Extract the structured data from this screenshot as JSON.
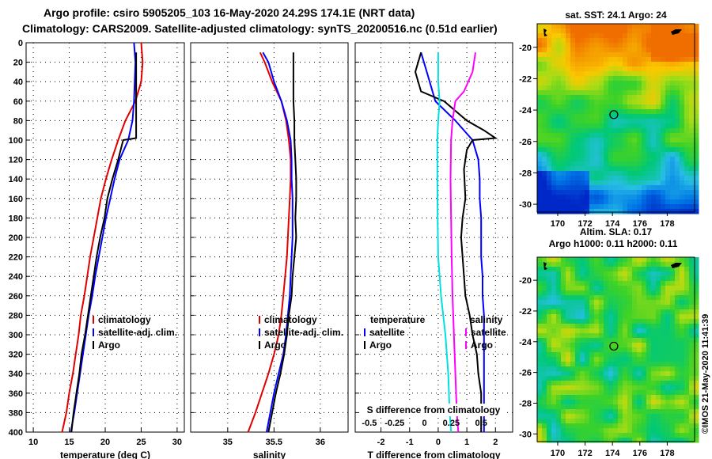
{
  "title_line1": "Argo profile: csiro 5905205_103 16-May-2020 24.29S 174.1E (NRT data)",
  "title_line2": "Climatology: CARS2009. Satellite-adjusted climatology: synTS_20200516.nc (0.51d earlier)",
  "timestamp": "©IMOS 21-May-2020 11:41:39",
  "colors": {
    "climatology": "#e00000",
    "satellite": "#0000ff",
    "argo": "#000000",
    "s_diff": "#00e0e0",
    "s_sat": "#ff00ff"
  },
  "chart_data": [
    {
      "type": "line",
      "name": "temperature-profile",
      "xlabel": "temperature (deg C)",
      "ylabel": "",
      "xlim": [
        9,
        31
      ],
      "ylim": [
        400,
        0
      ],
      "xticks": [
        "10",
        "15",
        "20",
        "25",
        "30"
      ],
      "yticks": [
        "0",
        "20",
        "40",
        "60",
        "80",
        "100",
        "120",
        "140",
        "160",
        "180",
        "200",
        "220",
        "240",
        "260",
        "280",
        "300",
        "320",
        "340",
        "360",
        "380",
        "400"
      ],
      "legend": [
        "climatology",
        "satellite-adj. clim.",
        "Argo"
      ],
      "series": [
        {
          "name": "climatology",
          "color_key": "climatology",
          "points": [
            [
              25.0,
              0
            ],
            [
              25.2,
              20
            ],
            [
              25.0,
              40
            ],
            [
              24.2,
              60
            ],
            [
              22.8,
              80
            ],
            [
              21.8,
              100
            ],
            [
              20.9,
              120
            ],
            [
              20.1,
              140
            ],
            [
              19.4,
              160
            ],
            [
              18.9,
              180
            ],
            [
              18.4,
              200
            ],
            [
              17.9,
              220
            ],
            [
              17.5,
              240
            ],
            [
              17.1,
              260
            ],
            [
              16.6,
              280
            ],
            [
              16.3,
              300
            ],
            [
              15.9,
              320
            ],
            [
              15.5,
              340
            ],
            [
              15.0,
              360
            ],
            [
              14.6,
              380
            ],
            [
              14.0,
              400
            ]
          ]
        },
        {
          "name": "satellite-adj. clim.",
          "color_key": "satellite",
          "points": [
            [
              24.0,
              0
            ],
            [
              24.2,
              20
            ],
            [
              24.1,
              40
            ],
            [
              24.0,
              60
            ],
            [
              23.8,
              80
            ],
            [
              23.2,
              100
            ],
            [
              22.0,
              120
            ],
            [
              21.3,
              140
            ],
            [
              20.7,
              160
            ],
            [
              20.1,
              180
            ],
            [
              19.6,
              200
            ],
            [
              19.1,
              220
            ],
            [
              18.6,
              240
            ],
            [
              18.2,
              260
            ],
            [
              17.7,
              280
            ],
            [
              17.3,
              300
            ],
            [
              16.9,
              320
            ],
            [
              16.5,
              340
            ],
            [
              16.1,
              360
            ],
            [
              15.7,
              380
            ],
            [
              15.2,
              400
            ]
          ]
        },
        {
          "name": "Argo",
          "color_key": "argo",
          "points": [
            [
              24.3,
              10
            ],
            [
              24.3,
              40
            ],
            [
              24.3,
              60
            ],
            [
              24.3,
              80
            ],
            [
              24.3,
              98
            ],
            [
              22.5,
              100
            ],
            [
              21.8,
              120
            ],
            [
              21.0,
              140
            ],
            [
              20.3,
              160
            ],
            [
              19.9,
              180
            ],
            [
              19.3,
              200
            ],
            [
              18.8,
              220
            ],
            [
              18.4,
              240
            ],
            [
              18.0,
              260
            ],
            [
              17.6,
              280
            ],
            [
              17.2,
              300
            ],
            [
              16.7,
              320
            ],
            [
              16.4,
              340
            ],
            [
              16.0,
              360
            ],
            [
              15.6,
              380
            ],
            [
              15.3,
              400
            ]
          ]
        }
      ]
    },
    {
      "type": "line",
      "name": "salinity-profile",
      "xlabel": "salinity",
      "xlim": [
        34.6,
        36.3
      ],
      "ylim": [
        400,
        0
      ],
      "xticks": [
        "35",
        "35.5",
        "36"
      ],
      "legend": [
        "climatology",
        "satellite-adj. clim.",
        "Argo"
      ],
      "series": [
        {
          "name": "climatology",
          "color_key": "climatology",
          "points": [
            [
              35.35,
              10
            ],
            [
              35.4,
              20
            ],
            [
              35.48,
              40
            ],
            [
              35.58,
              60
            ],
            [
              35.63,
              80
            ],
            [
              35.66,
              100
            ],
            [
              35.68,
              120
            ],
            [
              35.68,
              140
            ],
            [
              35.67,
              160
            ],
            [
              35.66,
              180
            ],
            [
              35.65,
              200
            ],
            [
              35.64,
              220
            ],
            [
              35.62,
              240
            ],
            [
              35.6,
              260
            ],
            [
              35.58,
              280
            ],
            [
              35.55,
              300
            ],
            [
              35.5,
              320
            ],
            [
              35.44,
              340
            ],
            [
              35.37,
              360
            ],
            [
              35.3,
              380
            ],
            [
              35.22,
              400
            ]
          ]
        },
        {
          "name": "satellite-adj. clim.",
          "color_key": "satellite",
          "points": [
            [
              35.38,
              10
            ],
            [
              35.44,
              20
            ],
            [
              35.5,
              40
            ],
            [
              35.58,
              60
            ],
            [
              35.64,
              80
            ],
            [
              35.68,
              100
            ],
            [
              35.69,
              120
            ],
            [
              35.69,
              140
            ],
            [
              35.7,
              160
            ],
            [
              35.7,
              180
            ],
            [
              35.7,
              200
            ],
            [
              35.69,
              220
            ],
            [
              35.68,
              240
            ],
            [
              35.67,
              260
            ],
            [
              35.65,
              280
            ],
            [
              35.63,
              300
            ],
            [
              35.6,
              320
            ],
            [
              35.55,
              340
            ],
            [
              35.5,
              360
            ],
            [
              35.46,
              380
            ],
            [
              35.42,
              400
            ]
          ]
        },
        {
          "name": "Argo",
          "color_key": "argo",
          "points": [
            [
              35.71,
              10
            ],
            [
              35.71,
              50
            ],
            [
              35.71,
              60
            ],
            [
              35.72,
              80
            ],
            [
              35.72,
              100
            ],
            [
              35.73,
              120
            ],
            [
              35.74,
              140
            ],
            [
              35.74,
              160
            ],
            [
              35.73,
              180
            ],
            [
              35.74,
              200
            ],
            [
              35.72,
              220
            ],
            [
              35.7,
              240
            ],
            [
              35.69,
              260
            ],
            [
              35.66,
              280
            ],
            [
              35.64,
              300
            ],
            [
              35.61,
              320
            ],
            [
              35.57,
              340
            ],
            [
              35.52,
              360
            ],
            [
              35.48,
              380
            ],
            [
              35.44,
              400
            ]
          ]
        }
      ]
    },
    {
      "type": "line",
      "name": "difference-profile",
      "xlabel": "T difference from climatology",
      "xlabel2": "S difference from climatology",
      "xlim": [
        -2.9,
        2.6
      ],
      "ylim": [
        400,
        0
      ],
      "xticks": [
        "-2",
        "-1",
        "0",
        "1",
        "2"
      ],
      "xticks2": [
        "-0.5",
        "-0.25",
        "0",
        "0.25",
        "0.5"
      ],
      "legend_left": [
        "temperature",
        "satellite",
        "Argo"
      ],
      "legend_right": [
        "salinity",
        "satellite",
        "Argo"
      ],
      "series": [
        {
          "name": "T satellite",
          "color_key": "satellite",
          "points": [
            [
              -0.6,
              10
            ],
            [
              -0.4,
              30
            ],
            [
              -0.1,
              60
            ],
            [
              0.6,
              80
            ],
            [
              1.2,
              100
            ],
            [
              1.4,
              120
            ],
            [
              1.45,
              140
            ],
            [
              1.45,
              160
            ],
            [
              1.5,
              180
            ],
            [
              1.5,
              200
            ],
            [
              1.5,
              220
            ],
            [
              1.55,
              240
            ],
            [
              1.55,
              260
            ],
            [
              1.6,
              280
            ],
            [
              1.6,
              300
            ],
            [
              1.6,
              320
            ],
            [
              1.6,
              340
            ],
            [
              1.6,
              360
            ],
            [
              1.6,
              380
            ],
            [
              1.6,
              400
            ]
          ]
        },
        {
          "name": "T Argo",
          "color_key": "argo",
          "points": [
            [
              -0.6,
              10
            ],
            [
              -0.8,
              30
            ],
            [
              -0.6,
              50
            ],
            [
              0.2,
              60
            ],
            [
              1.0,
              80
            ],
            [
              1.6,
              90
            ],
            [
              2.0,
              98
            ],
            [
              1.2,
              100
            ],
            [
              1.0,
              110
            ],
            [
              0.9,
              130
            ],
            [
              0.95,
              160
            ],
            [
              0.85,
              180
            ],
            [
              0.8,
              200
            ],
            [
              0.85,
              220
            ],
            [
              0.9,
              240
            ],
            [
              0.95,
              260
            ],
            [
              1.1,
              280
            ],
            [
              1.2,
              300
            ],
            [
              1.35,
              320
            ],
            [
              1.4,
              340
            ],
            [
              1.5,
              360
            ],
            [
              1.5,
              380
            ],
            [
              1.5,
              400
            ]
          ]
        },
        {
          "name": "S satellite",
          "color_key": "s_diff",
          "points": [
            [
              0.0,
              10
            ],
            [
              0.0,
              40
            ],
            [
              0.05,
              60
            ],
            [
              0.0,
              80
            ],
            [
              -0.03,
              100
            ],
            [
              -0.03,
              140
            ],
            [
              -0.02,
              180
            ],
            [
              0.0,
              220
            ],
            [
              0.1,
              260
            ],
            [
              0.25,
              300
            ],
            [
              0.35,
              340
            ],
            [
              0.4,
              380
            ],
            [
              0.45,
              400
            ]
          ]
        },
        {
          "name": "S Argo",
          "color_key": "s_sat",
          "points": [
            [
              1.3,
              10
            ],
            [
              1.2,
              30
            ],
            [
              0.9,
              50
            ],
            [
              0.6,
              60
            ],
            [
              0.5,
              80
            ],
            [
              0.45,
              100
            ],
            [
              0.43,
              140
            ],
            [
              0.45,
              180
            ],
            [
              0.47,
              220
            ],
            [
              0.5,
              260
            ],
            [
              0.55,
              300
            ],
            [
              0.6,
              340
            ],
            [
              0.65,
              380
            ],
            [
              0.7,
              400
            ]
          ]
        }
      ]
    },
    {
      "type": "heatmap",
      "name": "sst-map",
      "title": "sat. SST: 24.1 Argo: 24",
      "xlim": [
        168.5,
        180
      ],
      "ylim": [
        -30.5,
        -18.5
      ],
      "xticks": [
        "170",
        "172",
        "174",
        "176",
        "178"
      ],
      "yticks": [
        "-20",
        "-22",
        "-24",
        "-26",
        "-28",
        "-30"
      ],
      "marker": {
        "lon": 174.1,
        "lat": -24.29
      }
    },
    {
      "type": "heatmap",
      "name": "sla-map",
      "title": "Altim. SLA: 0.17",
      "subtitle": "Argo h1000: 0.11 h2000: 0.11",
      "xlim": [
        168.5,
        180
      ],
      "ylim": [
        -30.5,
        -18.5
      ],
      "xticks": [
        "170",
        "172",
        "174",
        "176",
        "178"
      ],
      "yticks": [
        "-20",
        "-22",
        "-24",
        "-26",
        "-28",
        "-30"
      ],
      "marker": {
        "lon": 174.1,
        "lat": -24.29
      }
    }
  ]
}
